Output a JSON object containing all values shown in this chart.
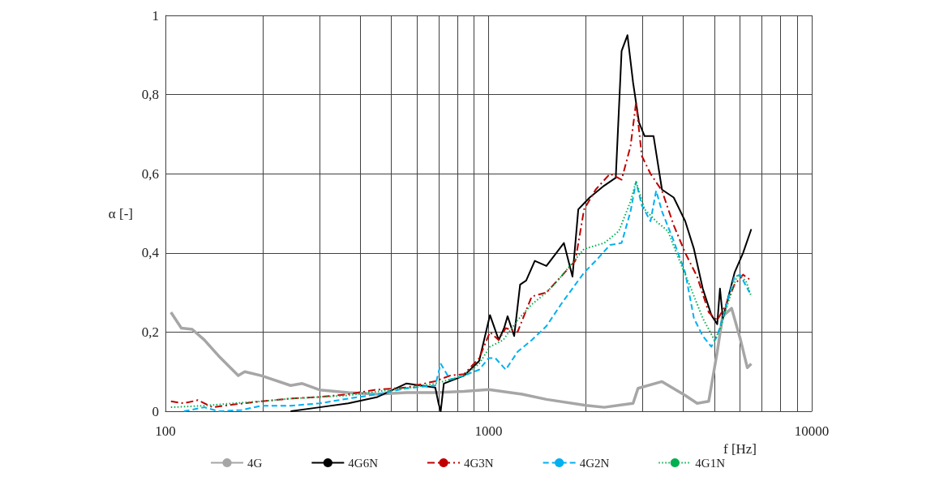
{
  "chart_data": {
    "type": "line",
    "xlabel": "f [Hz]",
    "ylabel": "α [-]",
    "log": "x",
    "grid": true,
    "legend": "bottom",
    "marker": "none",
    "xlim": [
      100,
      10000
    ],
    "xticks": [
      100,
      {
        "value": 200,
        "label": null
      },
      {
        "value": 300,
        "label": null
      },
      {
        "value": 400,
        "label": null
      },
      {
        "value": 500,
        "label": null
      },
      {
        "value": 600,
        "label": null
      },
      {
        "value": 700,
        "label": null
      },
      {
        "value": 800,
        "label": null
      },
      {
        "value": 900,
        "label": null
      },
      1000,
      {
        "value": 2000,
        "label": null
      },
      {
        "value": 3000,
        "label": null
      },
      {
        "value": 4000,
        "label": null
      },
      {
        "value": 5000,
        "label": null
      },
      {
        "value": 6000,
        "label": null
      },
      {
        "value": 7000,
        "label": null
      },
      {
        "value": 8000,
        "label": null
      },
      {
        "value": 9000,
        "label": null
      },
      10000
    ],
    "ylim": [
      0,
      1
    ],
    "yticks": [
      0,
      {
        "value": 0.2,
        "label": "0,2"
      },
      {
        "value": 0.4,
        "label": "0,4"
      },
      {
        "value": 0.6,
        "label": "0,6"
      },
      {
        "value": 0.8,
        "label": "0,8"
      },
      1
    ],
    "series": [
      {
        "name": "4G",
        "color": "#a6a6a6",
        "line_style": "solid",
        "x": [
          104,
          112,
          121,
          132,
          146,
          168,
          176,
          198,
          244,
          265,
          300,
          368,
          453,
          556,
          684,
          840,
          1000,
          1270,
          1510,
          2000,
          2280,
          2800,
          2900,
          3440,
          4060,
          4420,
          4800,
          5100,
          5300,
          5650,
          6000,
          6320,
          6500
        ],
        "values": [
          0.25,
          0.21,
          0.207,
          0.18,
          0.14,
          0.09,
          0.1,
          0.09,
          0.065,
          0.07,
          0.054,
          0.047,
          0.043,
          0.047,
          0.047,
          0.05,
          0.055,
          0.043,
          0.03,
          0.015,
          0.01,
          0.02,
          0.058,
          0.075,
          0.04,
          0.02,
          0.025,
          0.15,
          0.24,
          0.26,
          0.185,
          0.11,
          0.12
        ]
      },
      {
        "name": "4G6N",
        "color": "#000000",
        "line_style": "solid",
        "x": [
          244,
          300,
          368,
          453,
          556,
          684,
          700,
          711,
          727,
          840,
          935,
          1010,
          1075,
          1117,
          1145,
          1200,
          1252,
          1307,
          1390,
          1510,
          1710,
          1818,
          1895,
          2055,
          2280,
          2475,
          2580,
          2690,
          2800,
          2920,
          3040,
          3240,
          3440,
          3740,
          4060,
          4320,
          4600,
          4890,
          5100,
          5200,
          5310,
          5770,
          6130,
          6500
        ],
        "values": [
          0,
          0.01,
          0.02,
          0.036,
          0.07,
          0.06,
          0.02,
          0,
          0.07,
          0.09,
          0.127,
          0.243,
          0.18,
          0.21,
          0.24,
          0.19,
          0.32,
          0.33,
          0.38,
          0.367,
          0.425,
          0.34,
          0.51,
          0.54,
          0.57,
          0.59,
          0.91,
          0.95,
          0.83,
          0.73,
          0.695,
          0.695,
          0.56,
          0.54,
          0.48,
          0.41,
          0.31,
          0.243,
          0.22,
          0.31,
          0.235,
          0.35,
          0.4,
          0.46
        ]
      },
      {
        "name": "4G3N",
        "color": "#c00000",
        "line_style": "dashdot",
        "x": [
          104,
          114,
          126,
          140,
          162,
          198,
          244,
          300,
          368,
          444,
          556,
          684,
          760,
          840,
          935,
          1010,
          1075,
          1130,
          1229,
          1360,
          1510,
          1675,
          1855,
          1975,
          2145,
          2375,
          2580,
          2750,
          2860,
          2980,
          3170,
          3440,
          3740,
          4060,
          4420,
          4800,
          5100,
          5430,
          5770,
          6130,
          6500
        ],
        "values": [
          0.025,
          0.02,
          0.028,
          0.01,
          0.017,
          0.025,
          0.032,
          0.036,
          0.043,
          0.054,
          0.06,
          0.076,
          0.09,
          0.094,
          0.134,
          0.2,
          0.18,
          0.21,
          0.2,
          0.29,
          0.3,
          0.34,
          0.38,
          0.51,
          0.56,
          0.6,
          0.585,
          0.67,
          0.78,
          0.645,
          0.6,
          0.557,
          0.47,
          0.4,
          0.34,
          0.25,
          0.23,
          0.27,
          0.32,
          0.345,
          0.33
        ]
      },
      {
        "name": "4G2N",
        "color": "#00b0f0",
        "line_style": "dashed",
        "x": [
          114,
          132,
          146,
          172,
          198,
          244,
          300,
          368,
          453,
          556,
          684,
          711,
          760,
          840,
          935,
          1000,
          1050,
          1130,
          1229,
          1360,
          1510,
          1675,
          1855,
          1975,
          2145,
          2375,
          2580,
          2750,
          2860,
          2980,
          3170,
          3300,
          3440,
          3740,
          4060,
          4320,
          4600,
          4890,
          5100,
          5430,
          5770,
          6000,
          6420
        ],
        "values": [
          0,
          0.01,
          0,
          0.003,
          0.014,
          0.014,
          0.02,
          0.032,
          0.043,
          0.058,
          0.065,
          0.12,
          0.08,
          0.09,
          0.105,
          0.134,
          0.134,
          0.105,
          0.15,
          0.18,
          0.215,
          0.27,
          0.32,
          0.35,
          0.38,
          0.42,
          0.425,
          0.505,
          0.58,
          0.52,
          0.48,
          0.557,
          0.505,
          0.43,
          0.35,
          0.235,
          0.19,
          0.163,
          0.19,
          0.265,
          0.34,
          0.345,
          0.3
        ]
      },
      {
        "name": "4G1N",
        "color": "#00b050",
        "line_style": "dotted",
        "x": [
          104,
          132,
          162,
          198,
          244,
          300,
          368,
          453,
          556,
          684,
          840,
          935,
          1010,
          1110,
          1229,
          1360,
          1510,
          1675,
          1975,
          2280,
          2530,
          2750,
          2860,
          3040,
          3300,
          3590,
          3900,
          4230,
          4600,
          5000,
          5200,
          5540,
          5890,
          6250,
          6500
        ],
        "values": [
          0.01,
          0.014,
          0.02,
          0.025,
          0.032,
          0.036,
          0.04,
          0.05,
          0.058,
          0.07,
          0.09,
          0.12,
          0.163,
          0.18,
          0.23,
          0.27,
          0.3,
          0.34,
          0.41,
          0.425,
          0.455,
          0.53,
          0.58,
          0.51,
          0.48,
          0.455,
          0.38,
          0.31,
          0.235,
          0.18,
          0.207,
          0.28,
          0.345,
          0.33,
          0.29
        ]
      }
    ]
  }
}
